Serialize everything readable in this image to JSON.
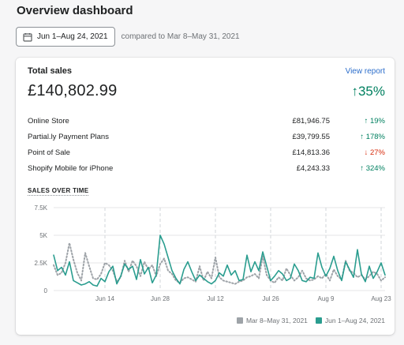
{
  "page": {
    "title": "Overview dashboard"
  },
  "date_range": {
    "button_label": "Jun 1–Aug 24, 2021",
    "compare_text": "compared to Mar 8–May 31, 2021"
  },
  "card": {
    "title": "Total sales",
    "view_report_label": "View report",
    "total_value": "£140,802.99",
    "total_change": "↑35%",
    "breakdown": [
      {
        "label": "Online Store",
        "value": "£81,946.75",
        "change": "↑ 19%",
        "direction": "up"
      },
      {
        "label": "Partial.ly Payment Plans",
        "value": "£39,799.55",
        "change": "↑ 178%",
        "direction": "up"
      },
      {
        "label": "Point of Sale",
        "value": "£14,813.36",
        "change": "↓ 27%",
        "direction": "down"
      },
      {
        "label": "Shopify Mobile for iPhone",
        "value": "£4,243.33",
        "change": "↑ 324%",
        "direction": "up"
      }
    ],
    "sales_over_time_label": "SALES OVER TIME"
  },
  "colors": {
    "current": "#2a9d8f",
    "previous": "#9ea3a8",
    "up": "#008060",
    "down": "#d72c0d",
    "link": "#2c6ecb"
  },
  "chart_data": {
    "type": "line",
    "title": "",
    "ylim": [
      0,
      7500
    ],
    "y_ticks": [
      "7.5K",
      "5K",
      "2.5K",
      "0"
    ],
    "y_tick_values": [
      7500,
      5000,
      2500,
      0
    ],
    "x_ticks": [
      "Jun 14",
      "Jun 28",
      "Jul 12",
      "Jul 26",
      "Aug 9",
      "Aug 23"
    ],
    "x_tick_days": [
      13,
      27,
      41,
      55,
      69,
      83
    ],
    "n_days": 85,
    "series": [
      {
        "name": "Jun 1–Aug 24, 2021",
        "style": "solid",
        "values": [
          3200,
          1800,
          2100,
          1400,
          2600,
          900,
          700,
          500,
          600,
          800,
          500,
          400,
          1100,
          800,
          1700,
          2200,
          600,
          1300,
          2400,
          1900,
          2200,
          1000,
          2800,
          1500,
          2100,
          700,
          1400,
          5000,
          4200,
          3000,
          1800,
          1100,
          600,
          1900,
          2600,
          1700,
          900,
          1400,
          1100,
          800,
          600,
          900,
          1600,
          1300,
          2300,
          1400,
          1800,
          900,
          1000,
          3200,
          1700,
          2600,
          1800,
          3500,
          2200,
          900,
          1300,
          1800,
          1500,
          900,
          1100,
          2400,
          1800,
          900,
          800,
          1200,
          1100,
          3400,
          2100,
          1300,
          2000,
          3100,
          1800,
          900,
          2600,
          1900,
          1200,
          3700,
          1500,
          800,
          2200,
          1100,
          1700,
          2500,
          1400
        ]
      },
      {
        "name": "Mar 8–May 31, 2021",
        "style": "dotted",
        "values": [
          2300,
          1400,
          1600,
          2500,
          4300,
          2800,
          1600,
          900,
          3400,
          2200,
          1100,
          1000,
          1500,
          2500,
          2300,
          1800,
          800,
          1200,
          2700,
          1700,
          2700,
          2200,
          1300,
          2600,
          1900,
          2300,
          1300,
          2400,
          2900,
          1800,
          1500,
          900,
          700,
          1100,
          1200,
          1000,
          800,
          2200,
          900,
          1700,
          1100,
          3000,
          1200,
          900,
          800,
          700,
          600,
          800,
          900,
          1200,
          1300,
          1500,
          1100,
          3100,
          1400,
          900,
          700,
          1200,
          900,
          2000,
          1400,
          900,
          1200,
          1800,
          1100,
          900,
          1000,
          1300,
          1100,
          1500,
          900,
          1900,
          1300,
          1000,
          2700,
          1800,
          1600,
          1200,
          1400,
          1000,
          1300,
          1700,
          1500,
          900,
          1200
        ]
      }
    ]
  }
}
